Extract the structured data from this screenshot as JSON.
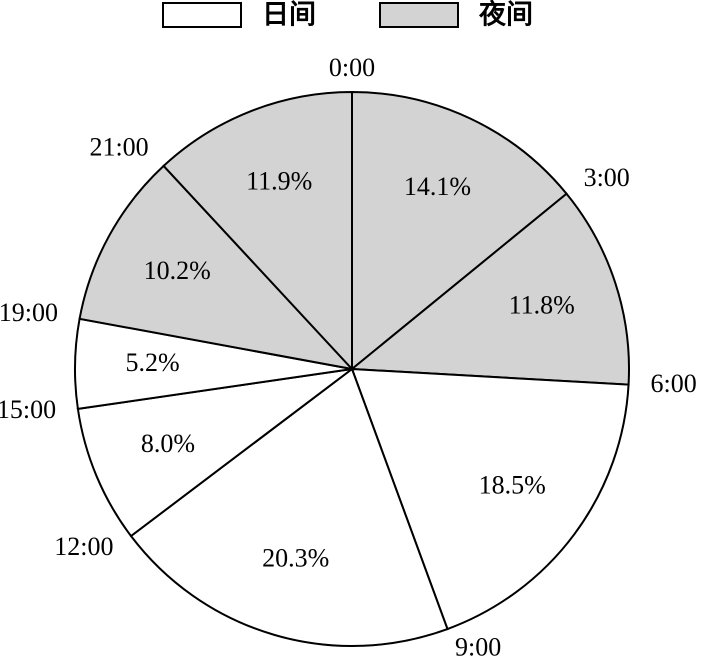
{
  "chart_data": {
    "type": "pie",
    "categories": [
      "0:00",
      "3:00",
      "6:00",
      "9:00",
      "12:00",
      "15:00",
      "19:00",
      "21:00"
    ],
    "values": [
      14.1,
      11.8,
      18.5,
      20.3,
      8.0,
      5.2,
      10.2,
      11.9
    ],
    "value_labels": [
      "14.1%",
      "11.8%",
      "18.5%",
      "20.3%",
      "8.0%",
      "5.2%",
      "10.2%",
      "11.9%"
    ],
    "colors": [
      "#d3d3d3",
      "#d3d3d3",
      "#ffffff",
      "#ffffff",
      "#ffffff",
      "#ffffff",
      "#d3d3d3",
      "#d3d3d3"
    ],
    "legend": [
      {
        "name": "日间",
        "color": "#ffffff"
      },
      {
        "name": "夜间",
        "color": "#d3d3d3"
      }
    ],
    "legend_position": "top"
  }
}
